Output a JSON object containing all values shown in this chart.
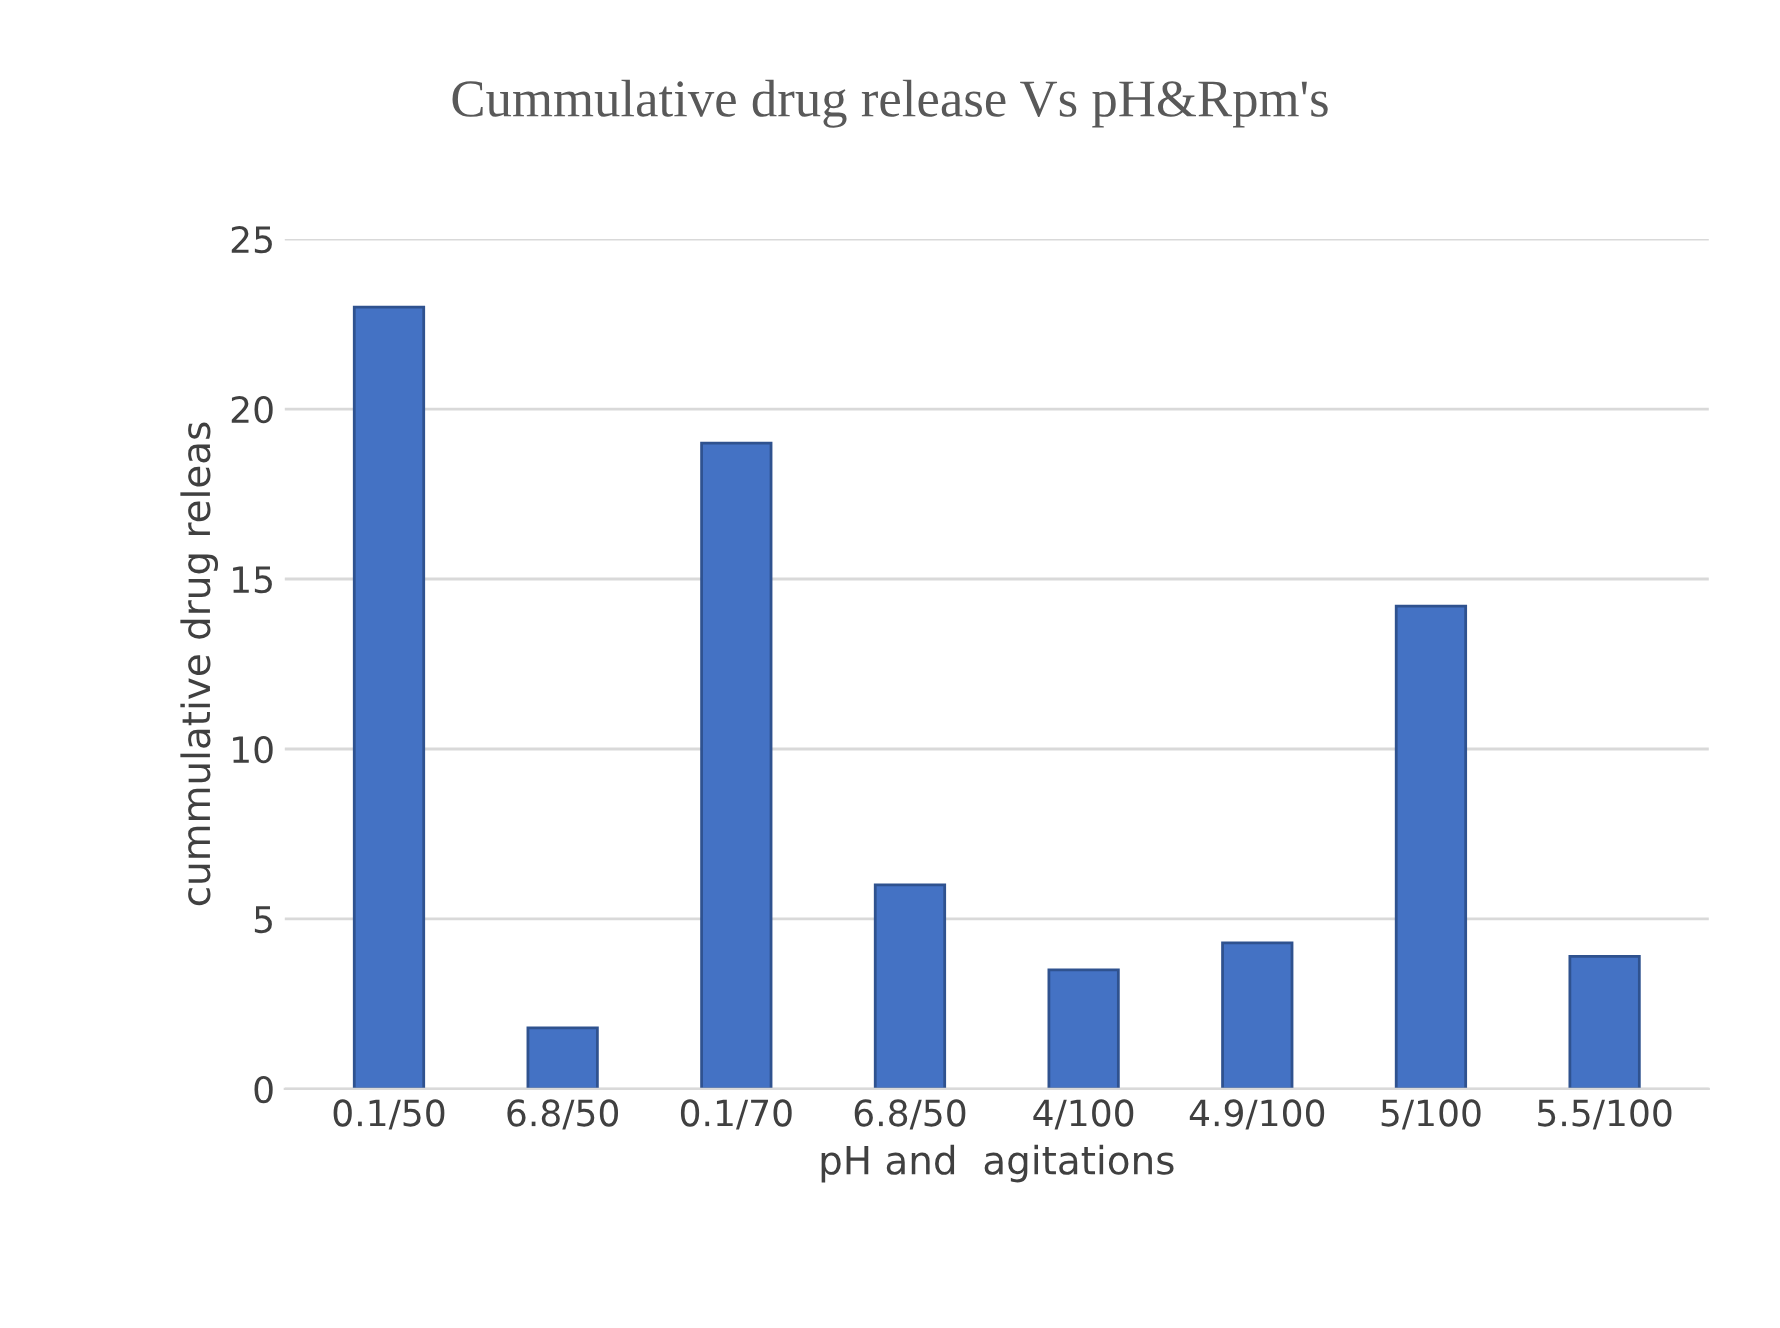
{
  "chart_data": {
    "type": "bar",
    "title": "Cummulative drug release Vs pH&Rpm's",
    "xlabel": "pH and  agitations",
    "ylabel": "cummulative drug releas",
    "categories": [
      "0.1/50",
      "6.8/50",
      "0.1/70",
      "6.8/50",
      "4/100",
      "4.9/100",
      "5/100",
      "5.5/100"
    ],
    "values": [
      23,
      1.8,
      19,
      6,
      3.5,
      4.3,
      14.2,
      3.9
    ],
    "color": "#4472c4",
    "ylim": [
      0,
      25
    ],
    "yticks": [
      0,
      5,
      10,
      15,
      20,
      25
    ],
    "grid": "y",
    "legend": false
  }
}
